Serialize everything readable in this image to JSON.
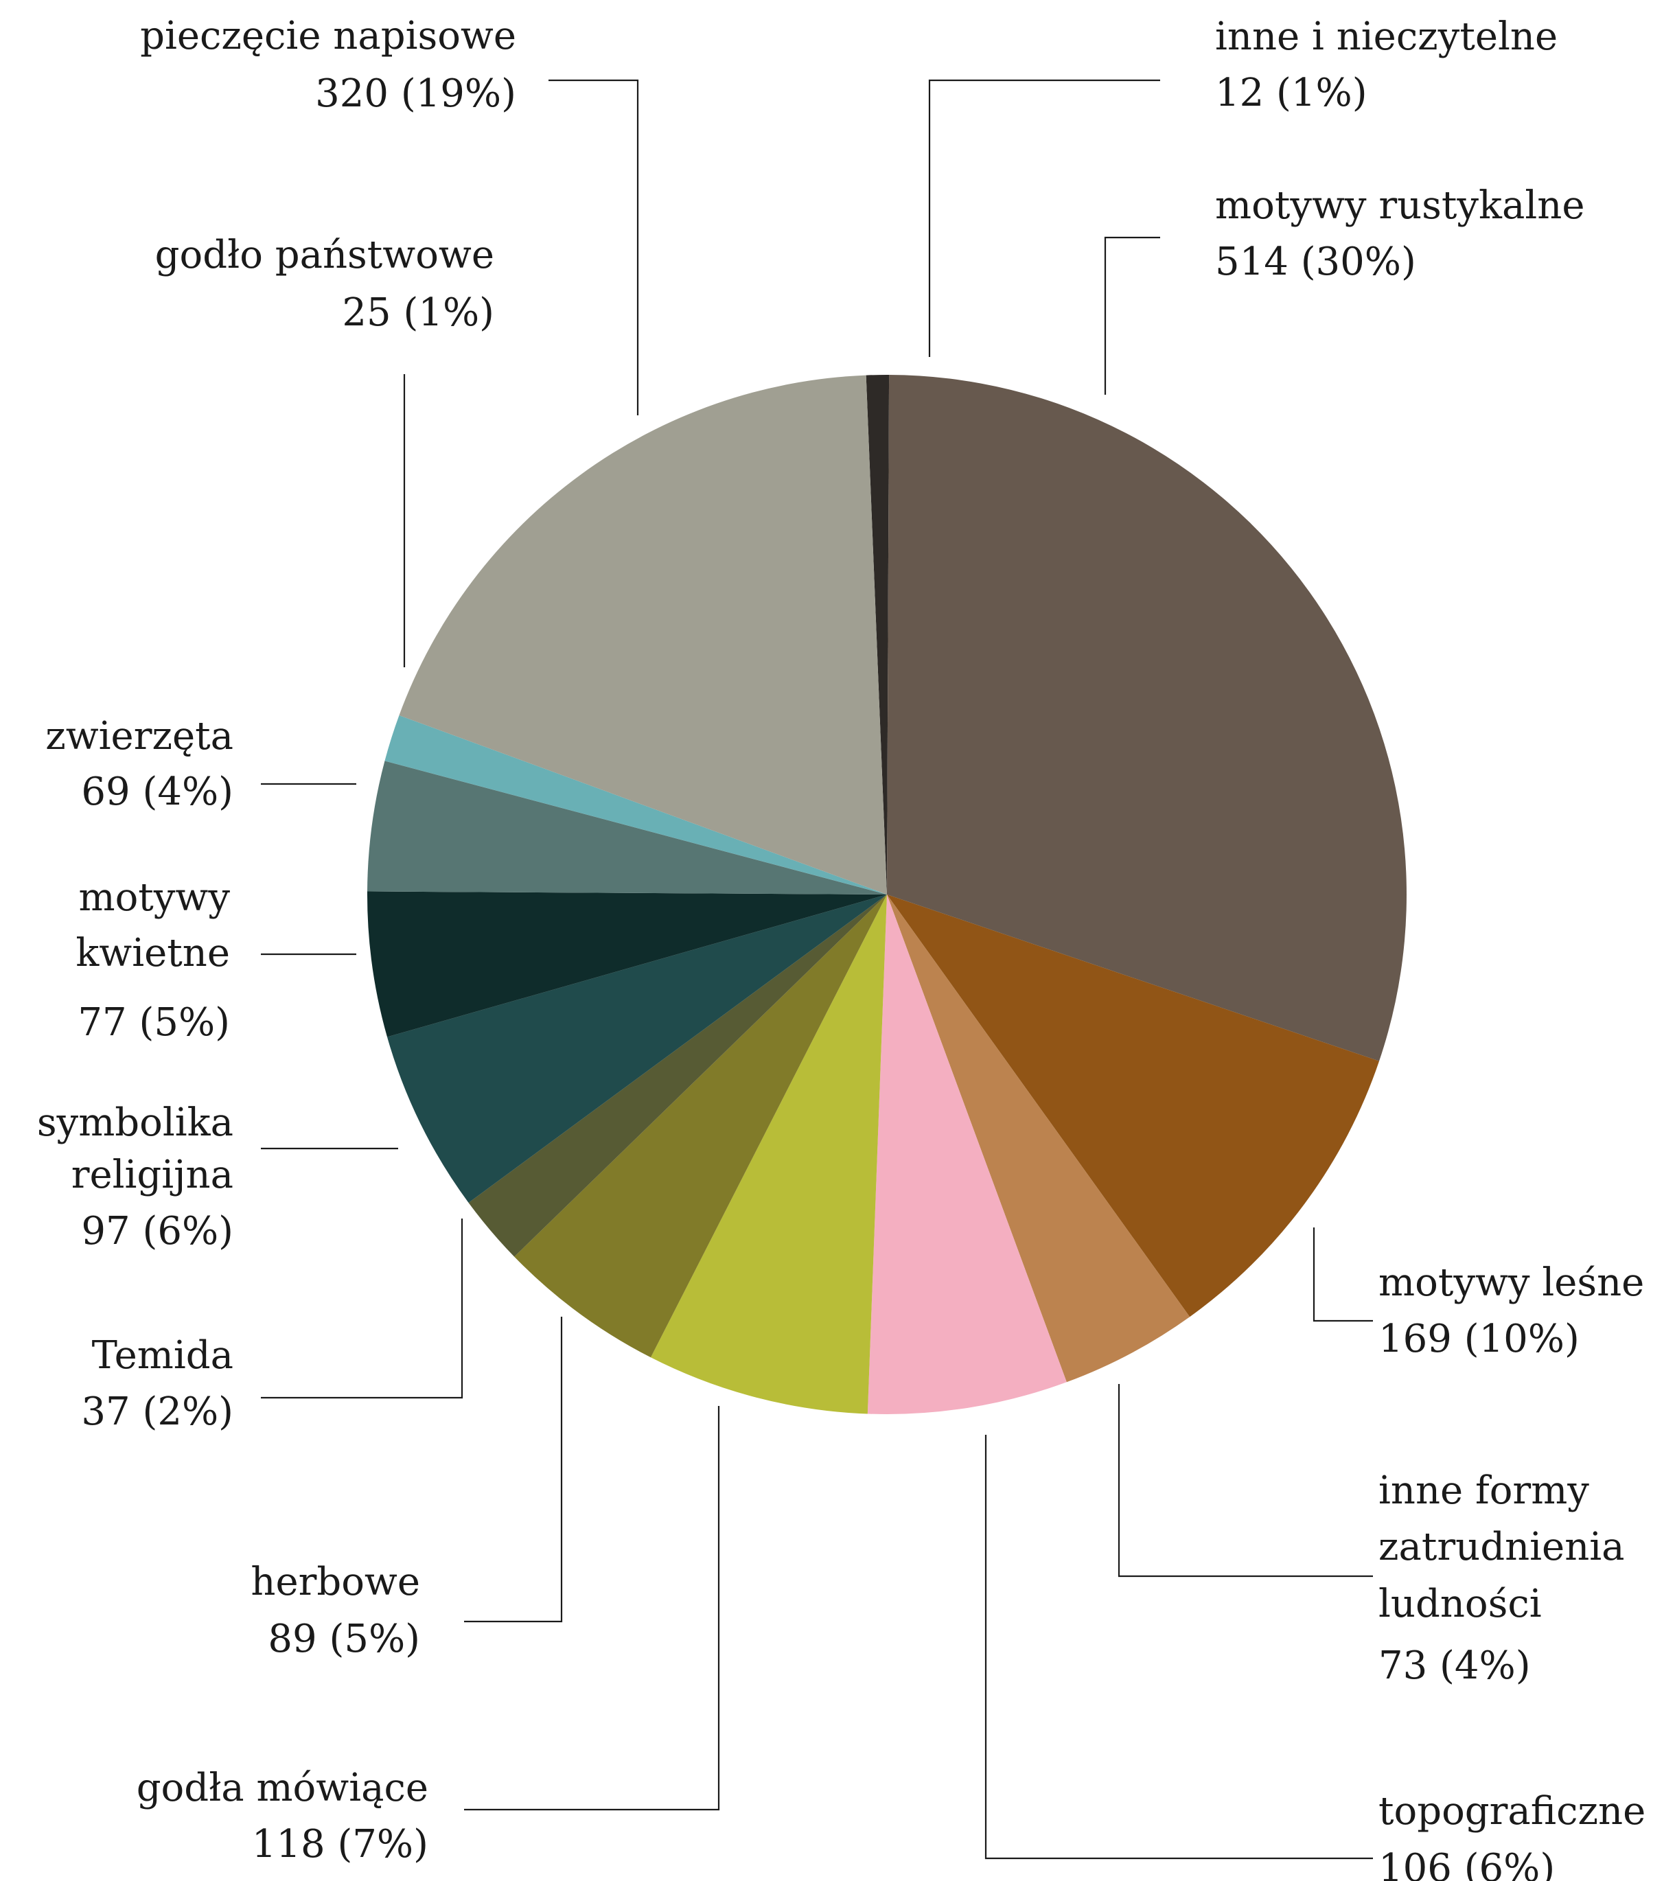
{
  "chart_data": {
    "type": "pie",
    "title": "",
    "start_angle_deg": -2.3,
    "direction": "clockwise",
    "slices": [
      {
        "label": "inne i nieczytelne",
        "value": 12,
        "percent_label": "12 (1%)",
        "color": "#2e2a27"
      },
      {
        "label": "motywy rustykalne",
        "value": 514,
        "percent_label": "514 (30%)",
        "color": "#67594e"
      },
      {
        "label": "motywy leśne",
        "value": 169,
        "percent_label": "169 (10%)",
        "color": "#915516"
      },
      {
        "label": "inne formy zatrudnienia ludności",
        "value": 73,
        "percent_label": "73 (4%)",
        "color": "#bc834f"
      },
      {
        "label": "topograficzne",
        "value": 106,
        "percent_label": "106 (6%)",
        "color": "#f4afc1"
      },
      {
        "label": "godła mówiące",
        "value": 118,
        "percent_label": "118 (7%)",
        "color": "#b8bd38"
      },
      {
        "label": "herbowe",
        "value": 89,
        "percent_label": "89 (5%)",
        "color": "#817b29"
      },
      {
        "label": "Temida",
        "value": 37,
        "percent_label": "37 (2%)",
        "color": "#575b34"
      },
      {
        "label": "symbolika religijna",
        "value": 97,
        "percent_label": "97 (6%)",
        "color": "#204b4c"
      },
      {
        "label": "motywy kwietne",
        "value": 77,
        "percent_label": "77 (5%)",
        "color": "#0f2c2b"
      },
      {
        "label": "zwierzęta",
        "value": 69,
        "percent_label": "69 (4%)",
        "color": "#577673"
      },
      {
        "label": "godło państwowe",
        "value": 25,
        "percent_label": "25 (1%)",
        "color": "#69b0b5"
      },
      {
        "label": "pieczęcie napisowe",
        "value": 320,
        "percent_label": "320 (19%)",
        "color": "#a09f92"
      }
    ]
  }
}
